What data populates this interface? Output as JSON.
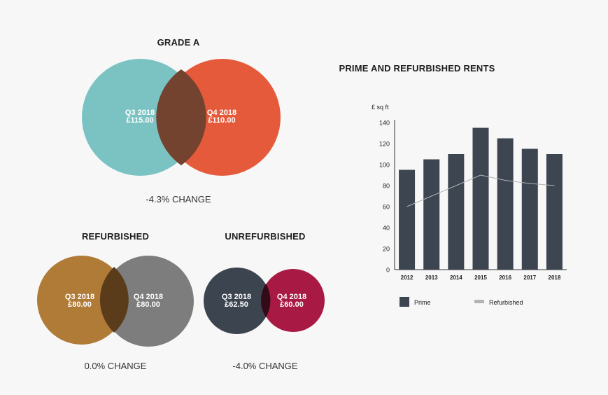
{
  "grade_a": {
    "title": "GRADE A",
    "left": {
      "period": "Q3 2018",
      "value": "£115.00",
      "color": "#7bc3c3"
    },
    "right": {
      "period": "Q4 2018",
      "value": "£110.00",
      "color": "#e55a3a"
    },
    "overlap_color": "#734330",
    "change": "-4.3% CHANGE"
  },
  "refurbished": {
    "title": "REFURBISHED",
    "left": {
      "period": "Q3 2018",
      "value": "£80.00",
      "color": "#b07a37"
    },
    "right": {
      "period": "Q4 2018",
      "value": "£80.00",
      "color": "#7c7d7c"
    },
    "overlap_color": "#5a3c1b",
    "change": "0.0% CHANGE"
  },
  "unrefurbished": {
    "title": "UNREFURBISHED",
    "left": {
      "period": "Q3 2018",
      "value": "£62.50",
      "color": "#3c4450"
    },
    "right": {
      "period": "Q4 2018",
      "value": "£60.00",
      "color": "#a81a43"
    },
    "overlap_color": "#330b16",
    "change": "-4.0% CHANGE"
  },
  "chart_data": {
    "type": "bar",
    "title": "PRIME AND REFURBISHED RENTS",
    "ylabel": "£ sq ft",
    "xlabel": "",
    "categories": [
      "2012",
      "2013",
      "2014",
      "2015",
      "2016",
      "2017",
      "2018"
    ],
    "ylim": [
      0,
      140
    ],
    "yticks": [
      0,
      20,
      40,
      60,
      80,
      100,
      120,
      140
    ],
    "grid": false,
    "legend_position": "bottom",
    "series": [
      {
        "name": "Prime",
        "kind": "bar",
        "color": "#3d4550",
        "values": [
          95,
          105,
          110,
          135,
          125,
          115,
          110
        ]
      },
      {
        "name": "Refurbished",
        "kind": "line",
        "color": "#b3b3b3",
        "values": [
          60,
          70,
          80,
          90,
          85,
          82,
          80
        ]
      }
    ]
  }
}
